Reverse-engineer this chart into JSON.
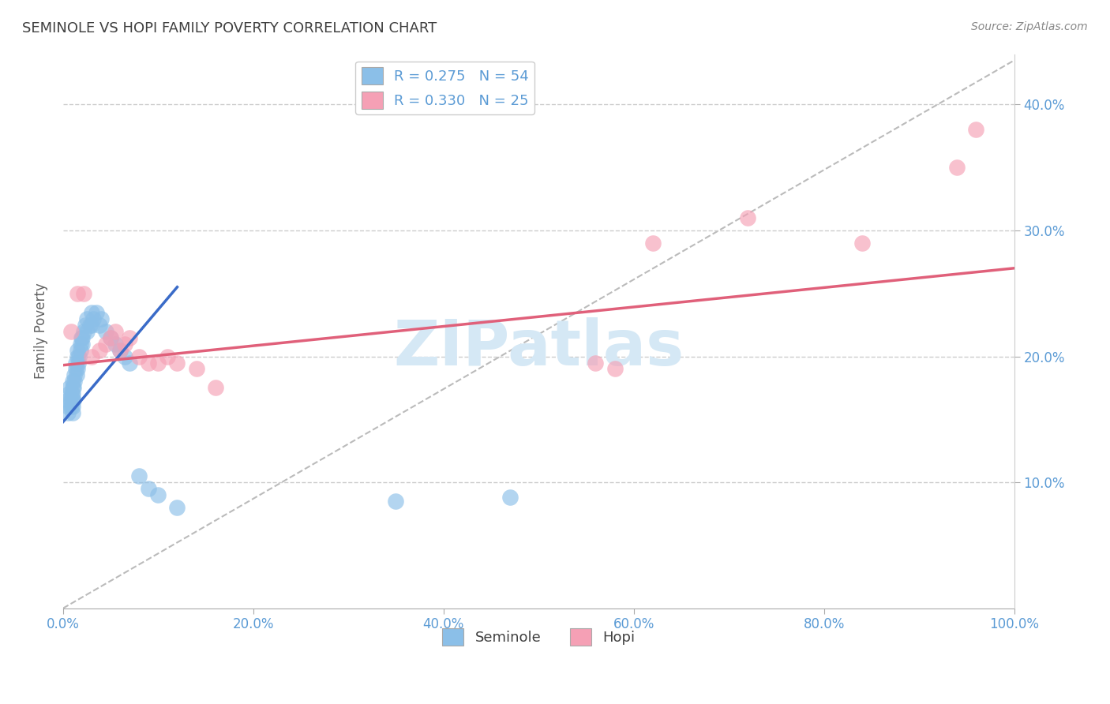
{
  "title": "SEMINOLE VS HOPI FAMILY POVERTY CORRELATION CHART",
  "source": "Source: ZipAtlas.com",
  "ylabel": "Family Poverty",
  "xlim": [
    0,
    1.0
  ],
  "ylim": [
    0,
    0.44
  ],
  "xticks": [
    0.0,
    0.2,
    0.4,
    0.6,
    0.8,
    1.0
  ],
  "xtick_labels": [
    "0.0%",
    "20.0%",
    "40.0%",
    "60.0%",
    "80.0%",
    "100.0%"
  ],
  "yticks": [
    0.1,
    0.2,
    0.3,
    0.4
  ],
  "ytick_labels": [
    "10.0%",
    "20.0%",
    "30.0%",
    "40.0%"
  ],
  "seminole_R": 0.275,
  "seminole_N": 54,
  "hopi_R": 0.33,
  "hopi_N": 25,
  "seminole_color": "#8BBFE8",
  "hopi_color": "#F5A0B5",
  "seminole_line_color": "#3A6BC8",
  "hopi_line_color": "#E0607A",
  "ref_line_color": "#BBBBBB",
  "grid_color": "#CCCCCC",
  "tick_color": "#5B9BD5",
  "title_color": "#404040",
  "ylabel_color": "#606060",
  "watermark_color": "#D5E8F5",
  "watermark_text": "ZIPatlas",
  "seminole_x": [
    0.005,
    0.005,
    0.005,
    0.006,
    0.007,
    0.008,
    0.008,
    0.009,
    0.01,
    0.01,
    0.01,
    0.01,
    0.01,
    0.01,
    0.011,
    0.011,
    0.012,
    0.012,
    0.013,
    0.013,
    0.014,
    0.015,
    0.015,
    0.015,
    0.016,
    0.017,
    0.018,
    0.018,
    0.019,
    0.02,
    0.02,
    0.022,
    0.023,
    0.025,
    0.025,
    0.028,
    0.03,
    0.03,
    0.032,
    0.035,
    0.038,
    0.04,
    0.045,
    0.05,
    0.055,
    0.06,
    0.065,
    0.07,
    0.08,
    0.09,
    0.1,
    0.12,
    0.35,
    0.47
  ],
  "seminole_y": [
    0.155,
    0.16,
    0.165,
    0.17,
    0.175,
    0.16,
    0.165,
    0.17,
    0.155,
    0.16,
    0.165,
    0.17,
    0.175,
    0.18,
    0.165,
    0.175,
    0.18,
    0.185,
    0.19,
    0.195,
    0.185,
    0.19,
    0.2,
    0.205,
    0.195,
    0.2,
    0.205,
    0.21,
    0.215,
    0.21,
    0.215,
    0.22,
    0.225,
    0.23,
    0.22,
    0.225,
    0.235,
    0.225,
    0.23,
    0.235,
    0.225,
    0.23,
    0.22,
    0.215,
    0.21,
    0.205,
    0.2,
    0.195,
    0.105,
    0.095,
    0.09,
    0.08,
    0.085,
    0.088
  ],
  "hopi_x": [
    0.008,
    0.015,
    0.022,
    0.03,
    0.038,
    0.045,
    0.05,
    0.055,
    0.06,
    0.065,
    0.07,
    0.08,
    0.09,
    0.1,
    0.11,
    0.12,
    0.14,
    0.16,
    0.56,
    0.62,
    0.72,
    0.84,
    0.94,
    0.96,
    0.58
  ],
  "hopi_y": [
    0.22,
    0.25,
    0.25,
    0.2,
    0.205,
    0.21,
    0.215,
    0.22,
    0.205,
    0.21,
    0.215,
    0.2,
    0.195,
    0.195,
    0.2,
    0.195,
    0.19,
    0.175,
    0.195,
    0.29,
    0.31,
    0.29,
    0.35,
    0.38,
    0.19
  ],
  "seminole_line_x": [
    0.0,
    0.12
  ],
  "seminole_line_y": [
    0.148,
    0.255
  ],
  "hopi_line_x": [
    0.0,
    1.0
  ],
  "hopi_line_y": [
    0.193,
    0.27
  ],
  "ref_line_x": [
    0.0,
    1.0
  ],
  "ref_line_y": [
    0.0,
    0.435
  ]
}
